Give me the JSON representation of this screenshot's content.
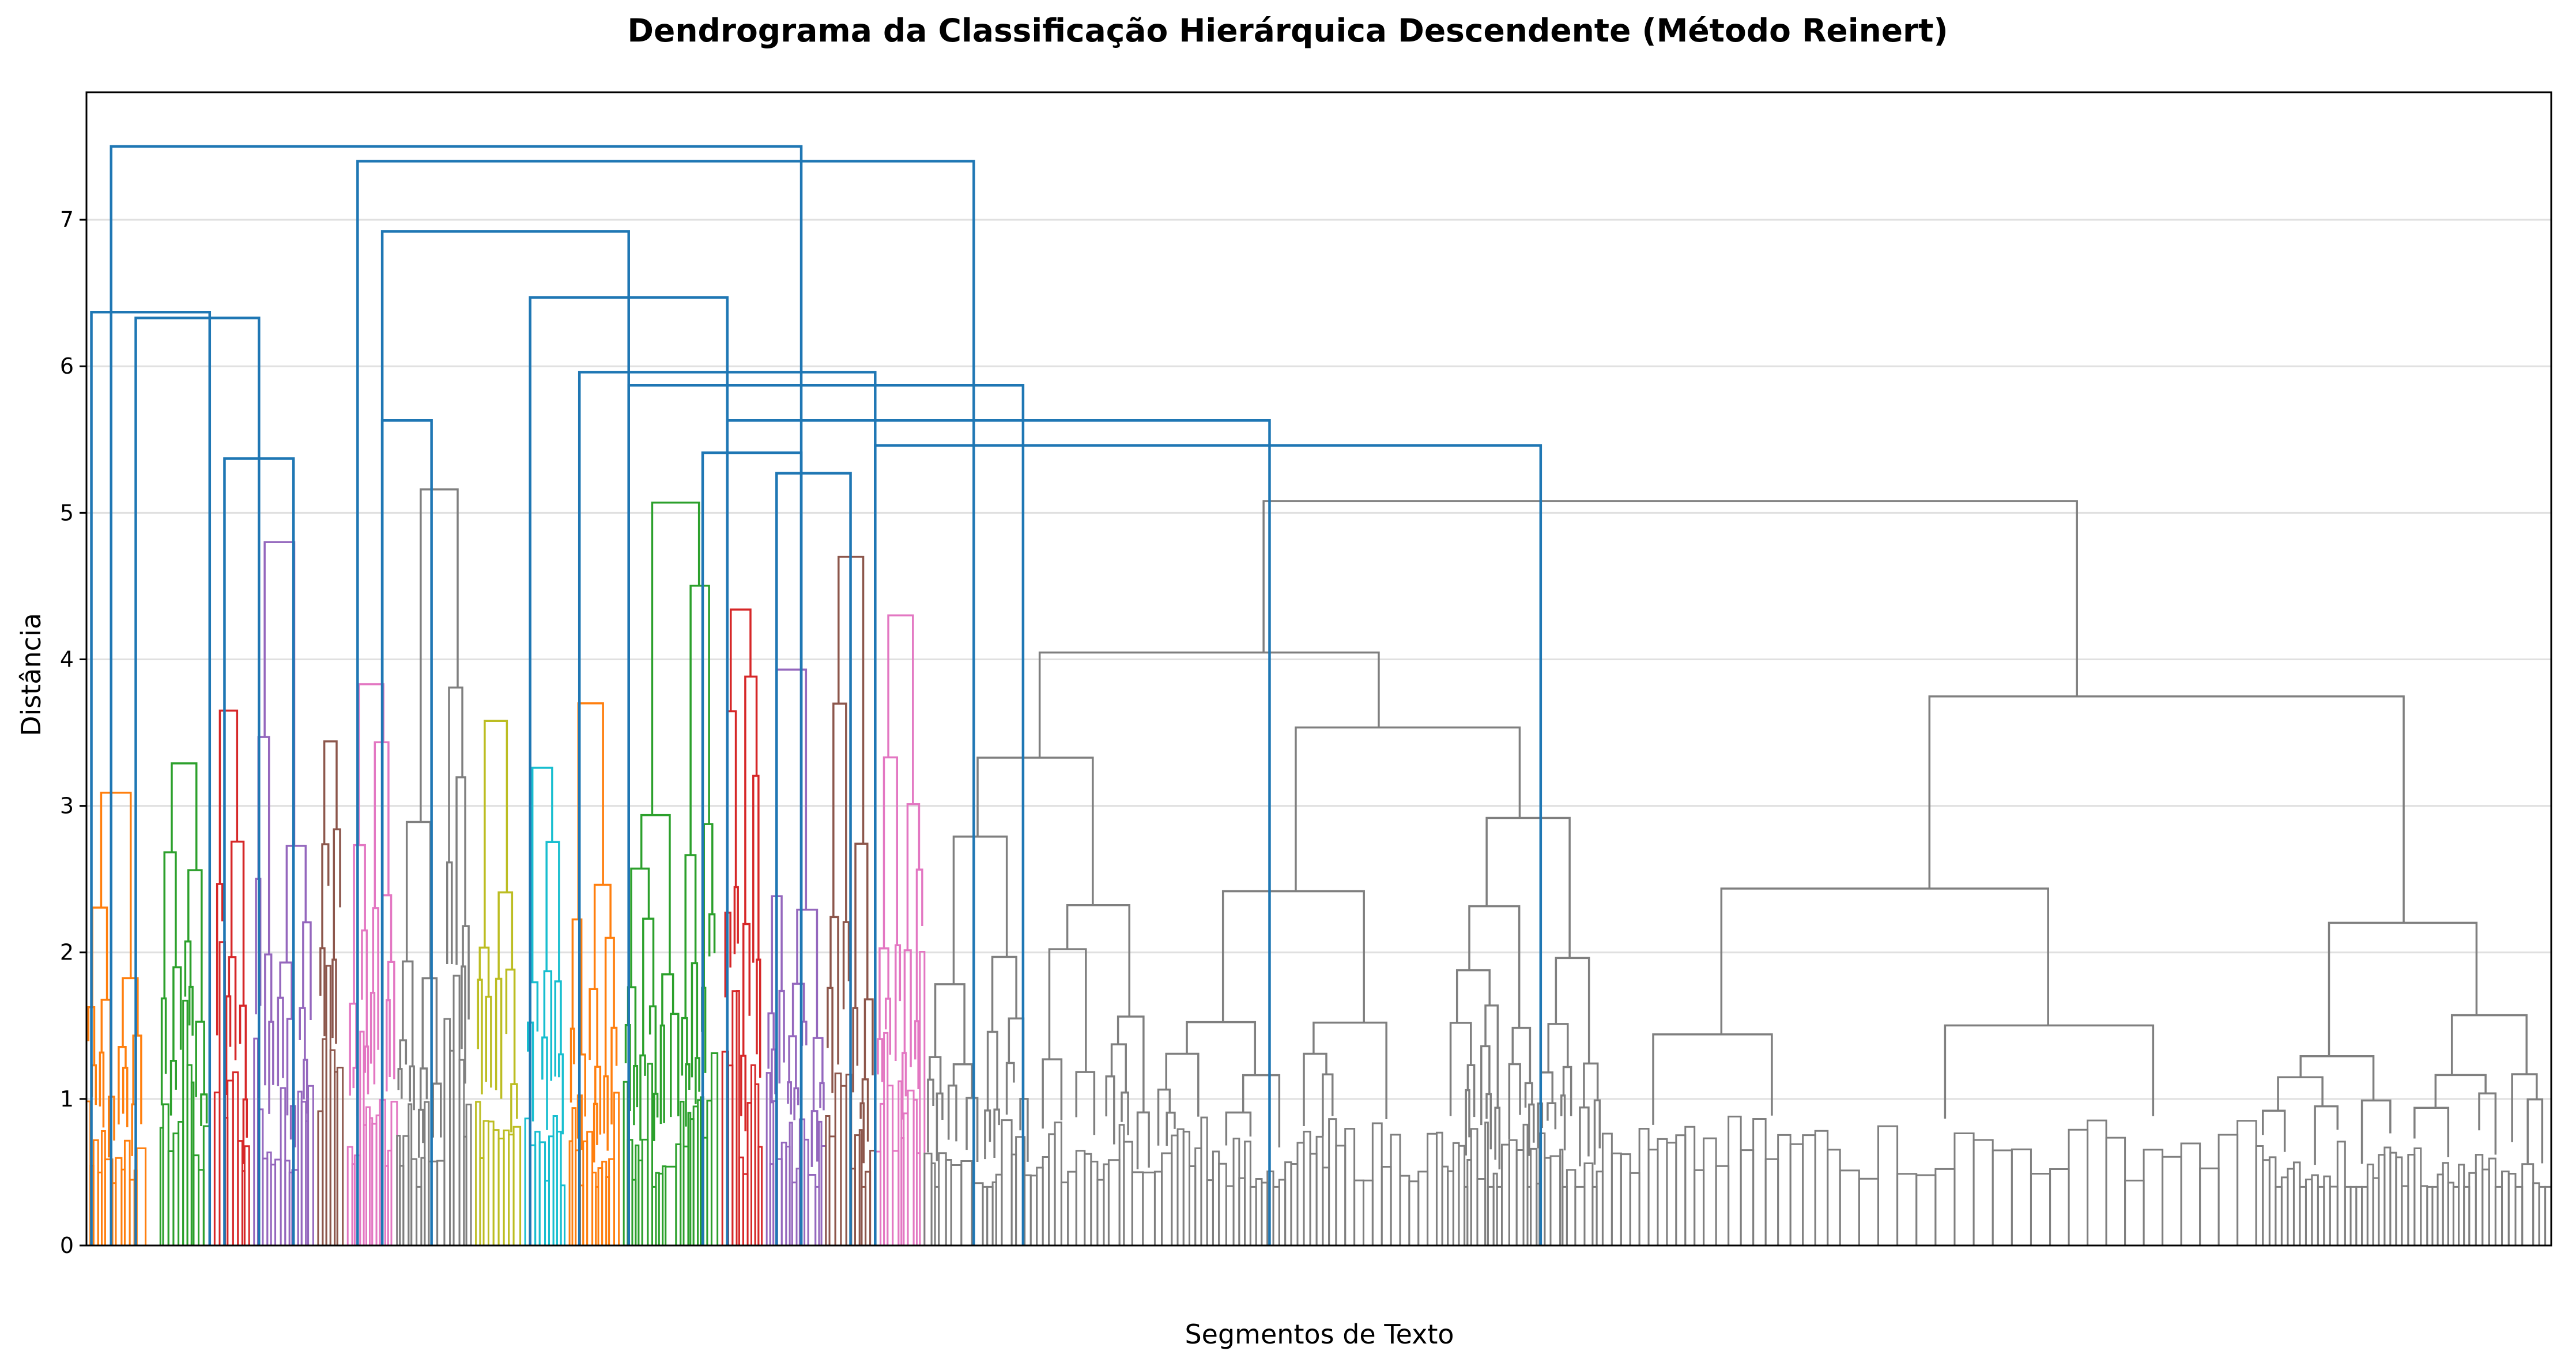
{
  "chart_data": {
    "type": "dendrogram",
    "title": "Dendrograma da Classificação Hierárquica Descendente (Método Reinert)",
    "xlabel": "Segmentos de Texto",
    "ylabel": "Distância",
    "ylim": [
      0,
      7.87
    ],
    "yticks": [
      0,
      1,
      2,
      3,
      4,
      5,
      6,
      7
    ],
    "grid": "horizontal",
    "link_color_above_threshold": "#1f77b4",
    "top_merges": [
      {
        "x": [
          0.5,
          14.5
        ],
        "height": 7.5
      },
      {
        "x": [
          0.1,
          2.5
        ],
        "height": 6.37
      },
      {
        "x": [
          1.0,
          3.5
        ],
        "height": 6.33
      },
      {
        "x": [
          2.8,
          4.2
        ],
        "height": 5.37
      },
      {
        "x": [
          5.5,
          18.0
        ],
        "height": 7.4
      },
      {
        "x": [
          6.0,
          11.0
        ],
        "height": 6.92
      },
      {
        "x": [
          6.0,
          7.0
        ],
        "height": 5.63
      },
      {
        "x": [
          9.0,
          13.0
        ],
        "height": 6.47
      },
      {
        "x": [
          10.0,
          16.0
        ],
        "height": 5.96
      },
      {
        "x": [
          11.0,
          19.0
        ],
        "height": 5.87
      },
      {
        "x": [
          13.0,
          24.0
        ],
        "height": 5.63
      },
      {
        "x": [
          12.5,
          14.5
        ],
        "height": 5.41
      },
      {
        "x": [
          14.0,
          15.5
        ],
        "height": 5.27
      },
      {
        "x": [
          16.0,
          29.5
        ],
        "height": 5.46
      }
    ],
    "clusters": [
      {
        "color": "#ff7f0e",
        "x_range": [
          0.0,
          1.2
        ],
        "height": 3.09
      },
      {
        "color": "#2ca02c",
        "x_range": [
          1.5,
          2.5
        ],
        "height": 3.29
      },
      {
        "color": "#d62728",
        "x_range": [
          2.6,
          3.3
        ],
        "height": 3.65
      },
      {
        "color": "#9467bd",
        "x_range": [
          3.4,
          4.6
        ],
        "height": 4.8
      },
      {
        "color": "#8c564b",
        "x_range": [
          4.7,
          5.2
        ],
        "height": 3.44
      },
      {
        "color": "#e377c2",
        "x_range": [
          5.3,
          6.3
        ],
        "height": 3.83
      },
      {
        "color": "#7f7f7f",
        "x_range": [
          6.3,
          7.8
        ],
        "height": 5.16
      },
      {
        "color": "#bcbd22",
        "x_range": [
          7.9,
          8.8
        ],
        "height": 3.58
      },
      {
        "color": "#17becf",
        "x_range": [
          8.9,
          9.7
        ],
        "height": 3.26
      },
      {
        "color": "#ff7f0e",
        "x_range": [
          9.8,
          10.8
        ],
        "height": 3.7
      },
      {
        "color": "#2ca02c",
        "x_range": [
          10.9,
          12.8
        ],
        "height": 5.07
      },
      {
        "color": "#d62728",
        "x_range": [
          12.9,
          13.7
        ],
        "height": 4.34
      },
      {
        "color": "#9467bd",
        "x_range": [
          13.8,
          15.0
        ],
        "height": 3.93
      },
      {
        "color": "#8c564b",
        "x_range": [
          15.0,
          16.0
        ],
        "height": 4.7
      },
      {
        "color": "#e377c2",
        "x_range": [
          16.0,
          17.0
        ],
        "height": 4.3
      },
      {
        "color": "#7f7f7f",
        "x_range": [
          17.0,
          50.0
        ],
        "height": 5.08
      }
    ]
  }
}
